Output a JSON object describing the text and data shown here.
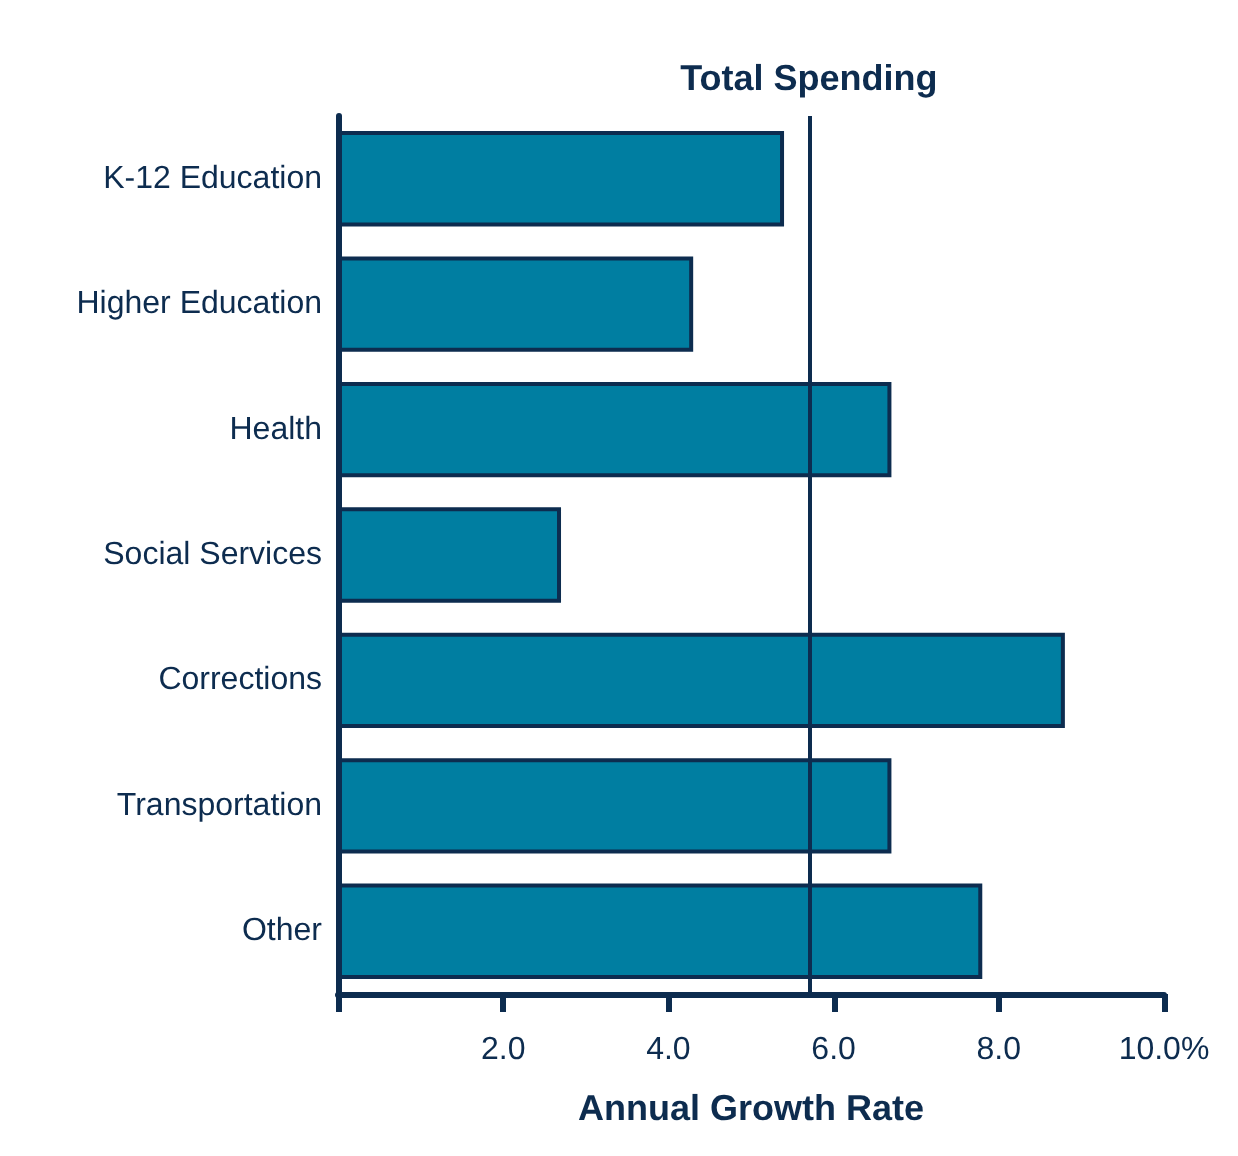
{
  "chart_data": {
    "type": "bar",
    "orientation": "horizontal",
    "xlabel": "Annual Growth Rate",
    "categories": [
      "K-12 Education",
      "Higher Education",
      "Health",
      "Social Services",
      "Corrections",
      "Transportation",
      "Other"
    ],
    "values": [
      5.4,
      4.3,
      6.7,
      2.7,
      8.8,
      6.7,
      7.8
    ],
    "color": "#007ea1",
    "xlim": [
      0,
      10
    ],
    "xticks": [
      {
        "value": 0,
        "label": null
      },
      {
        "value": 2,
        "label": "2.0"
      },
      {
        "value": 4,
        "label": "4.0"
      },
      {
        "value": 6,
        "label": "6.0"
      },
      {
        "value": 8,
        "label": "8.0"
      },
      {
        "value": 10,
        "label": "10.0%"
      }
    ],
    "ref_lines": [
      {
        "axis": "x",
        "value": 5.7,
        "label": "Total Spending",
        "color": "#0d2c4f"
      }
    ],
    "grid": false
  }
}
